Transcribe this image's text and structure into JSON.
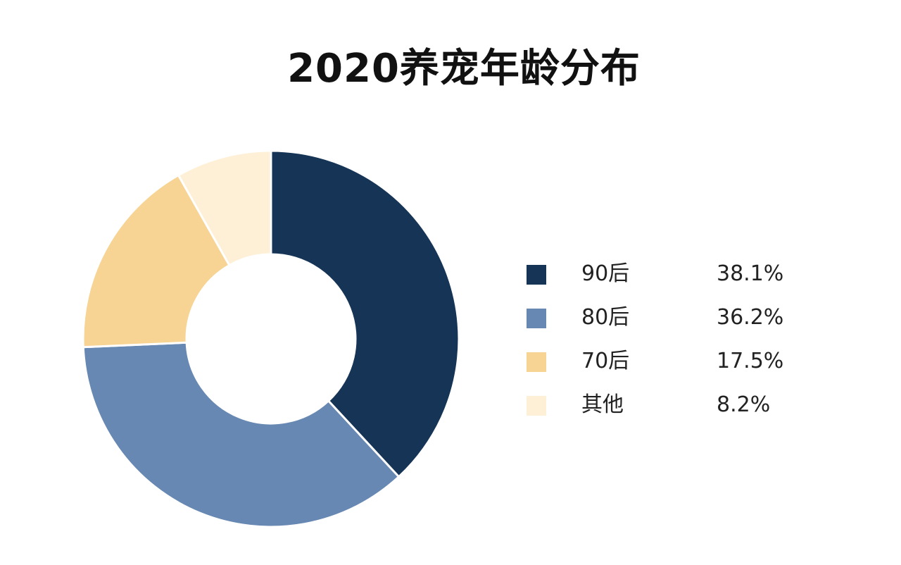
{
  "chart_data": {
    "type": "pie",
    "title": "2020养宠年龄分布",
    "donut": true,
    "legend_position": "right",
    "slices": [
      {
        "label": "90后",
        "value": 38.1,
        "value_label": "38.1%",
        "color": "#163456"
      },
      {
        "label": "80后",
        "value": 36.2,
        "value_label": "36.2%",
        "color": "#6788B2"
      },
      {
        "label": "70后",
        "value": 17.5,
        "value_label": "17.5%",
        "color": "#F7D394"
      },
      {
        "label": "其他",
        "value": 8.2,
        "value_label": "8.2%",
        "color": "#FEF0D6"
      }
    ]
  }
}
